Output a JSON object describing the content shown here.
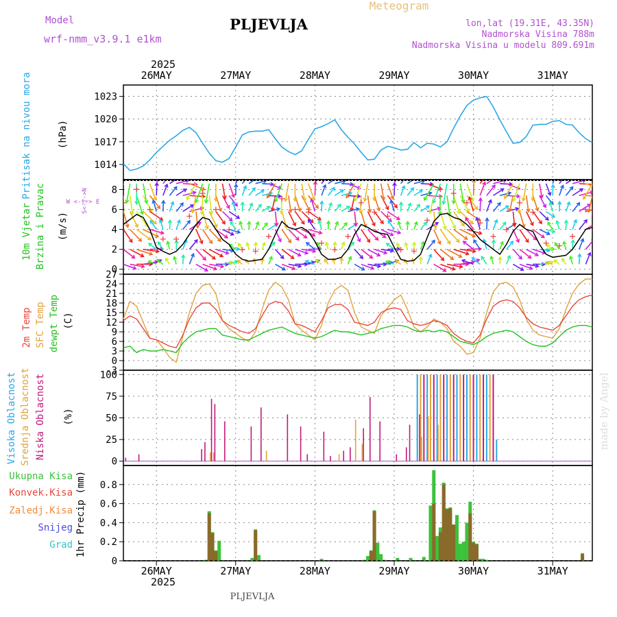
{
  "header": {
    "model_label": "Model",
    "model_name": "wrf-nmm_v3.9.1  e1km",
    "station": "PLJEVLJA",
    "product": "Meteogram",
    "lonlat": "lon,lat (19.31E, 43.35N)",
    "elevation": "Nadmorska Visina 788m",
    "model_elevation": "Nadmorska Visina u modelu 809.691m"
  },
  "footer": {
    "station": "PLJEVLJA",
    "credit": "made by Angel"
  },
  "colors": {
    "pressure": "#2aa7e6",
    "wind_speed": "#000000",
    "t2m": "#e8473c",
    "tsfc": "#e2a23a",
    "dewpoint": "#22c21e",
    "cloud_high": "#2aa7e6",
    "cloud_mid": "#e2a23a",
    "cloud_low": "#c0187a",
    "precip_total": "#3cc23a",
    "precip_conv": "#e8473c",
    "precip_frz": "#f28a3a",
    "precip_snow": "#4a4adc",
    "precip_grad": "#2ec7c7",
    "axis": "#000000",
    "grid": "#888888"
  },
  "time_axis": {
    "year": "2025",
    "days": [
      "26MAY",
      "27MAY",
      "28MAY",
      "29MAY",
      "30MAY",
      "31MAY"
    ],
    "start_hour": -10,
    "end_hour": 132
  },
  "panels": {
    "pressure": {
      "label": "Pritisak na nivou mora",
      "unit": "(hPa)"
    },
    "wind": {
      "label_1": "10m  Vjetar",
      "label_2": "Brzina i Pravac",
      "unit": "(m/s)",
      "compass": "W  <-|->  E",
      "compass_v": "S<-|->N"
    },
    "temp": {
      "label_1": "2m Temp",
      "label_2": "SFC Temp",
      "label_3": "dewpt Temp",
      "unit": "(C)"
    },
    "cloud": {
      "label_1": "Visoka Oblacnost",
      "label_2": "Srednja Oblacnost",
      "label_3": "Niska  Oblacnost",
      "unit": "(%)"
    },
    "precip": {
      "label_1": "Ukupna  Kisa",
      "label_2": "Konvek.Kisa",
      "label_3": "Zaledj.Kisa",
      "label_4": "Snijeg",
      "label_5": "Grad",
      "unit": "1hr Precip  (mm)"
    }
  },
  "chart_data": [
    {
      "type": "line",
      "name": "pressure",
      "ylabel": "(hPa)",
      "ylim": [
        1012,
        1024.5
      ],
      "yticks": [
        1014,
        1017,
        1020,
        1023
      ],
      "grid": true,
      "x_hours": [
        -10,
        -8,
        -6,
        -4,
        -2,
        0,
        2,
        4,
        6,
        8,
        10,
        12,
        14,
        16,
        18,
        20,
        22,
        24,
        26,
        28,
        30,
        32,
        34,
        36,
        38,
        40,
        42,
        44,
        46,
        48,
        50,
        52,
        54,
        56,
        58,
        60,
        62,
        64,
        66,
        68,
        70,
        72,
        74,
        76,
        78,
        80,
        82,
        84,
        86,
        88,
        90,
        92,
        94,
        96,
        98,
        100,
        102,
        104,
        106,
        108,
        110,
        112,
        114,
        116,
        118,
        120,
        122,
        124,
        126,
        128,
        130,
        132
      ],
      "series": [
        {
          "name": "Pritisak na nivou mora",
          "values": [
            1014.1,
            1013.2,
            1013.4,
            1013.8,
            1014.6,
            1015.6,
            1016.4,
            1017.2,
            1017.8,
            1018.5,
            1018.9,
            1018.2,
            1016.8,
            1015.5,
            1014.5,
            1014.3,
            1014.8,
            1016.3,
            1017.9,
            1018.3,
            1018.4,
            1018.4,
            1018.6,
            1017.4,
            1016.3,
            1015.7,
            1015.3,
            1015.8,
            1017.3,
            1018.7,
            1019.0,
            1019.4,
            1019.9,
            1018.6,
            1017.6,
            1016.7,
            1015.6,
            1014.6,
            1014.7,
            1015.9,
            1016.4,
            1016.2,
            1015.9,
            1016.0,
            1016.9,
            1016.2,
            1016.8,
            1016.7,
            1016.3,
            1017.0,
            1018.8,
            1020.4,
            1021.8,
            1022.5,
            1022.8,
            1023.0,
            1021.6,
            1019.9,
            1018.3,
            1016.8,
            1016.9,
            1017.7,
            1019.2,
            1019.3,
            1019.3,
            1019.7,
            1019.8,
            1019.3,
            1019.2,
            1018.2,
            1017.4,
            1016.9
          ]
        }
      ]
    },
    {
      "type": "line",
      "name": "wind",
      "ylabel": "(m/s)",
      "ylim": [
        -0.5,
        9
      ],
      "yticks": [
        0,
        2,
        4,
        6,
        8
      ],
      "grid": true,
      "x_hours": [
        -10,
        -8,
        -6,
        -4,
        -2,
        0,
        2,
        4,
        6,
        8,
        10,
        12,
        14,
        16,
        18,
        20,
        22,
        24,
        26,
        28,
        30,
        32,
        34,
        36,
        38,
        40,
        42,
        44,
        46,
        48,
        50,
        52,
        54,
        56,
        58,
        60,
        62,
        64,
        66,
        68,
        70,
        72,
        74,
        76,
        78,
        80,
        82,
        84,
        86,
        88,
        90,
        92,
        94,
        96,
        98,
        100,
        102,
        104,
        106,
        108,
        110,
        112,
        114,
        116,
        118,
        120,
        122,
        124,
        126,
        128,
        130,
        132
      ],
      "series": [
        {
          "name": "10m  Vjetar",
          "values": [
            4.5,
            5.0,
            5.5,
            5.2,
            4.0,
            2.2,
            1.8,
            1.5,
            1.8,
            2.5,
            3.5,
            4.5,
            5.2,
            5.0,
            4.0,
            3.0,
            2.5,
            1.5,
            1.0,
            0.8,
            0.9,
            1.0,
            2.0,
            3.5,
            4.8,
            4.2,
            4.0,
            4.2,
            3.8,
            2.8,
            1.5,
            1.0,
            1.0,
            1.2,
            2.0,
            3.5,
            4.5,
            4.2,
            3.8,
            3.6,
            3.5,
            2.2,
            1.0,
            0.8,
            0.9,
            1.5,
            3.2,
            4.8,
            5.5,
            5.6,
            5.2,
            5.0,
            4.5,
            3.8,
            3.0,
            2.5,
            2.0,
            1.5,
            2.5,
            3.8,
            4.5,
            4.0,
            3.8,
            2.5,
            1.5,
            1.2,
            1.3,
            1.4,
            2.0,
            3.0,
            4.0,
            4.2
          ]
        }
      ]
    },
    {
      "type": "line",
      "name": "temperature",
      "ylabel": "(C)",
      "ylim": [
        -3,
        27
      ],
      "yticks": [
        -3,
        0,
        3,
        6,
        9,
        12,
        15,
        18,
        21,
        24,
        27
      ],
      "grid": true,
      "x_hours": [
        -10,
        -8,
        -6,
        -4,
        -2,
        0,
        2,
        4,
        6,
        8,
        10,
        12,
        14,
        16,
        18,
        20,
        22,
        24,
        26,
        28,
        30,
        32,
        34,
        36,
        38,
        40,
        42,
        44,
        46,
        48,
        50,
        52,
        54,
        56,
        58,
        60,
        62,
        64,
        66,
        68,
        70,
        72,
        74,
        76,
        78,
        80,
        82,
        84,
        86,
        88,
        90,
        92,
        94,
        96,
        98,
        100,
        102,
        104,
        106,
        108,
        110,
        112,
        114,
        116,
        118,
        120,
        122,
        124,
        126,
        128,
        130,
        132
      ],
      "series": [
        {
          "name": "2m Temp",
          "values": [
            12.5,
            14.0,
            13.0,
            10.0,
            7.0,
            6.5,
            5.5,
            4.5,
            4.0,
            8.0,
            13.0,
            16.5,
            18.0,
            18.0,
            16.0,
            12.5,
            11.0,
            10.0,
            9.0,
            8.5,
            10.0,
            14.0,
            17.5,
            18.5,
            18.0,
            15.5,
            11.5,
            11.0,
            10.0,
            9.0,
            12.5,
            16.5,
            17.5,
            17.5,
            16.0,
            12.0,
            11.5,
            11.0,
            12.0,
            15.0,
            16.0,
            16.5,
            16.0,
            12.5,
            11.5,
            11.0,
            11.5,
            12.5,
            12.0,
            11.0,
            8.5,
            7.0,
            6.0,
            5.5,
            8.0,
            13.0,
            17.0,
            18.5,
            19.0,
            18.5,
            16.5,
            13.5,
            11.5,
            10.5,
            10.0,
            9.5,
            11.0,
            14.0,
            17.0,
            19.0,
            20.0,
            20.5
          ]
        },
        {
          "name": "SFC Temp",
          "values": [
            13.0,
            18.5,
            17.0,
            12.0,
            7.0,
            6.5,
            4.0,
            1.0,
            -0.5,
            7.5,
            15.0,
            21.0,
            23.5,
            24.0,
            21.0,
            12.5,
            10.0,
            8.5,
            7.0,
            6.0,
            9.0,
            16.0,
            22.0,
            24.5,
            23.0,
            19.0,
            11.5,
            9.5,
            8.0,
            6.5,
            11.0,
            18.0,
            22.0,
            23.5,
            22.0,
            15.0,
            10.5,
            9.5,
            8.5,
            14.0,
            16.5,
            19.0,
            20.5,
            16.0,
            10.5,
            9.0,
            10.5,
            13.0,
            12.0,
            10.0,
            6.0,
            4.5,
            2.0,
            2.5,
            7.0,
            15.0,
            21.5,
            24.0,
            24.5,
            23.0,
            19.0,
            13.0,
            9.5,
            8.0,
            7.5,
            7.0,
            10.0,
            16.0,
            21.0,
            24.0,
            25.5,
            25.5
          ]
        },
        {
          "name": "dewpt Temp",
          "values": [
            4.0,
            4.5,
            2.5,
            3.5,
            3.0,
            3.0,
            3.5,
            3.0,
            2.5,
            5.5,
            7.5,
            9.0,
            9.5,
            10.0,
            10.0,
            8.0,
            7.5,
            7.0,
            6.5,
            6.5,
            7.5,
            8.5,
            9.5,
            10.0,
            10.5,
            9.5,
            8.5,
            8.0,
            7.5,
            7.0,
            7.5,
            8.5,
            9.5,
            9.0,
            9.0,
            8.5,
            8.0,
            8.5,
            9.0,
            10.0,
            10.5,
            11.0,
            11.0,
            10.5,
            9.5,
            9.0,
            9.5,
            9.0,
            9.5,
            9.0,
            7.5,
            6.0,
            5.5,
            5.0,
            6.0,
            7.5,
            8.5,
            9.0,
            9.5,
            9.0,
            7.5,
            6.0,
            5.0,
            4.5,
            4.5,
            5.5,
            7.5,
            9.5,
            10.5,
            11.0,
            11.0,
            10.5
          ]
        }
      ]
    },
    {
      "type": "bar",
      "name": "cloud",
      "ylabel": "(%)",
      "ylim": [
        -5,
        105
      ],
      "yticks": [
        0,
        25,
        50,
        75,
        100
      ],
      "grid": true,
      "series": [
        {
          "name": "Niska  Oblacnost",
          "x": [
            -9,
            -5,
            14,
            15,
            17,
            18,
            21,
            29,
            32,
            40,
            44,
            46,
            51,
            53,
            57,
            59,
            63,
            65,
            68,
            73,
            76,
            77,
            80
          ],
          "values": [
            4,
            8,
            14,
            22,
            72,
            66,
            46,
            40,
            62,
            54,
            40,
            8,
            34,
            6,
            12,
            16,
            38,
            74,
            46,
            8,
            16,
            42,
            54
          ]
        },
        {
          "name": "Srednja Oblacnost",
          "x": [
            16,
            17,
            33,
            55,
            60,
            62,
            80,
            82,
            85
          ],
          "values": [
            10,
            10,
            12,
            8,
            48,
            20,
            28,
            52,
            42
          ]
        },
        {
          "name": "Visoka Oblacnost",
          "x": [
            79,
            80,
            81,
            82,
            83,
            84,
            85,
            86,
            87,
            88,
            89,
            90,
            91,
            92,
            93,
            94,
            95,
            96,
            97,
            98,
            99,
            100,
            101,
            102,
            103
          ],
          "values": [
            100,
            100,
            100,
            100,
            100,
            100,
            100,
            100,
            100,
            100,
            100,
            100,
            100,
            100,
            100,
            100,
            100,
            100,
            100,
            100,
            100,
            100,
            100,
            100,
            25
          ]
        }
      ]
    },
    {
      "type": "bar",
      "name": "precipitation",
      "ylabel": "1hr Precip  (mm)",
      "ylim": [
        0,
        1.0
      ],
      "yticks": [
        0,
        0.2,
        0.4,
        0.6,
        0.8
      ],
      "grid": true,
      "series": [
        {
          "name": "Ukupna  Kisa",
          "x": [
            15,
            16,
            17,
            18,
            19,
            29,
            30,
            31,
            50,
            63,
            64,
            65,
            66,
            67,
            68,
            69,
            73,
            77,
            81,
            83,
            84,
            85,
            86,
            87,
            88,
            89,
            90,
            91,
            92,
            93,
            94,
            95,
            96,
            97,
            98,
            99,
            100,
            129
          ],
          "values": [
            0.01,
            0.52,
            0.3,
            0.11,
            0.21,
            0.03,
            0.33,
            0.06,
            0.02,
            0.01,
            0.05,
            0.11,
            0.53,
            0.19,
            0.07,
            0.01,
            0.03,
            0.03,
            0.04,
            0.58,
            0.95,
            0.26,
            0.35,
            0.82,
            0.55,
            0.56,
            0.38,
            0.48,
            0.18,
            0.2,
            0.4,
            0.62,
            0.2,
            0.18,
            0.02,
            0.02,
            0.01,
            0.08
          ]
        },
        {
          "name": "Konvek.Kisa",
          "x": [
            16,
            17,
            18,
            30,
            65,
            66,
            84,
            86,
            87,
            88,
            89,
            90,
            95,
            96,
            97,
            129
          ],
          "values": [
            0.5,
            0.29,
            0.1,
            0.32,
            0.1,
            0.52,
            0.6,
            0.3,
            0.8,
            0.54,
            0.55,
            0.38,
            0.5,
            0.19,
            0.17,
            0.07
          ]
        }
      ]
    }
  ]
}
